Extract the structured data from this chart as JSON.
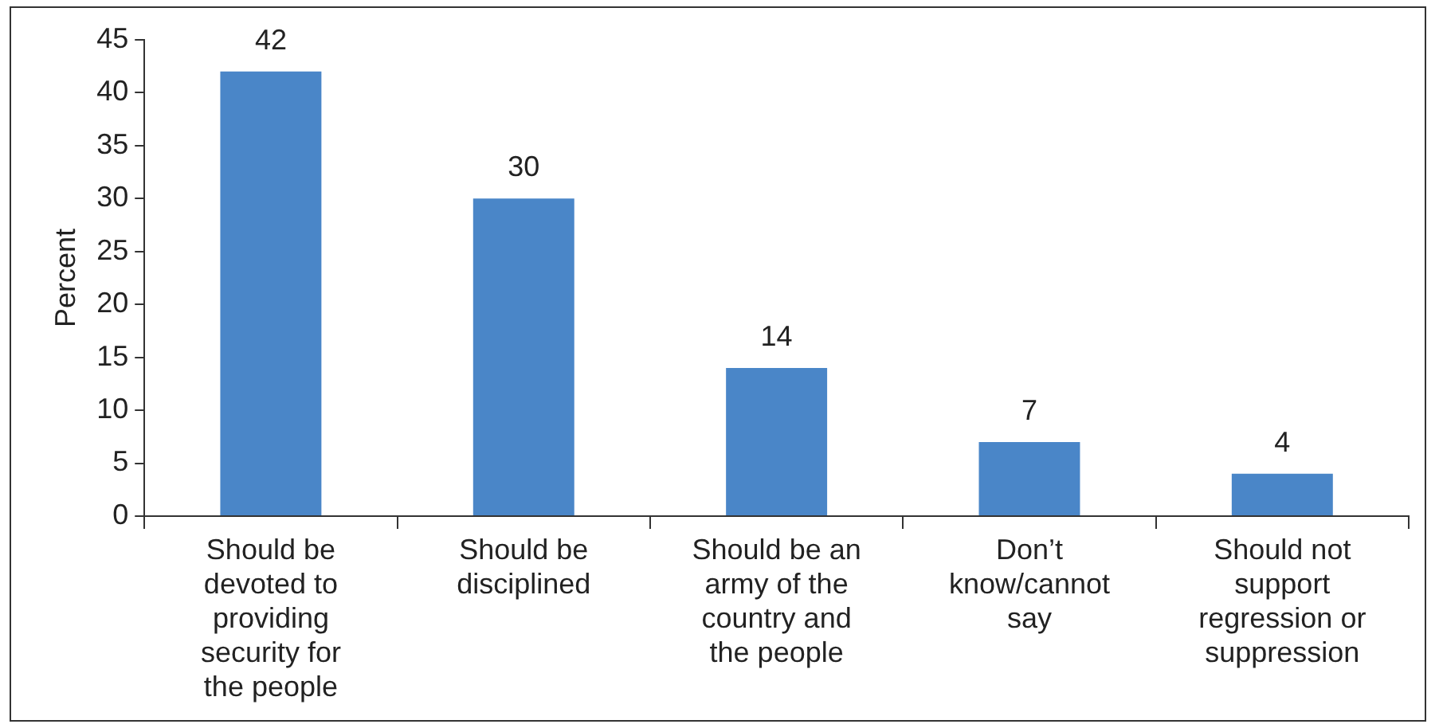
{
  "chart_data": {
    "type": "bar",
    "ylabel": "Percent",
    "categories": [
      "Should be devoted to providing security for the people",
      "Should be disciplined",
      "Should be an army of the country and the people",
      "Don’t know/cannot say",
      "Should not support regression or suppression"
    ],
    "values": [
      42,
      30,
      14,
      7,
      4
    ],
    "color": "#4a86c8",
    "ylim": [
      0,
      45
    ],
    "yticks": [
      0,
      5,
      10,
      15,
      20,
      25,
      30,
      35,
      40,
      45
    ],
    "grid": false,
    "data_labels": true,
    "legend": false
  }
}
